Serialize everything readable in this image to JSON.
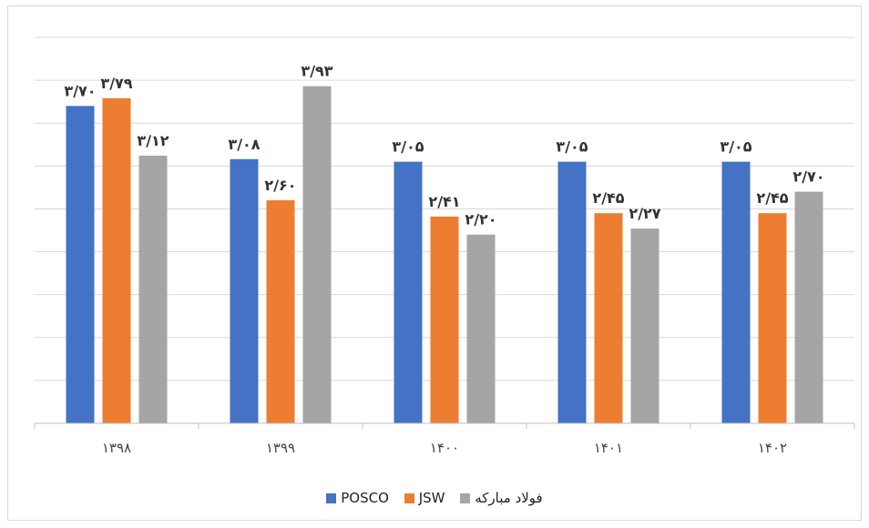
{
  "chart_data": {
    "type": "bar",
    "title": "",
    "xlabel": "",
    "ylabel": "",
    "ylim": [
      0,
      4.5
    ],
    "grid": true,
    "legend_position": "bottom",
    "categories": [
      "۱۳۹۸",
      "۱۳۹۹",
      "۱۴۰۰",
      "۱۴۰۱",
      "۱۴۰۲"
    ],
    "series": [
      {
        "name": "POSCO",
        "color": "#4472c4",
        "values": [
          3.7,
          3.08,
          3.05,
          3.05,
          3.05
        ],
        "labels": [
          "۳/۷۰",
          "۳/۰۸",
          "۳/۰۵",
          "۳/۰۵",
          "۳/۰۵"
        ]
      },
      {
        "name": "JSW",
        "color": "#ed7d31",
        "values": [
          3.79,
          2.6,
          2.41,
          2.45,
          2.45
        ],
        "labels": [
          "۳/۷۹",
          "۲/۶۰",
          "۲/۴۱",
          "۲/۴۵",
          "۲/۴۵"
        ]
      },
      {
        "name": "فولاد مبارکه",
        "color": "#a5a5a5",
        "values": [
          3.12,
          3.93,
          2.2,
          2.27,
          2.7
        ],
        "labels": [
          "۳/۱۲",
          "۳/۹۳",
          "۲/۲۰",
          "۲/۲۷",
          "۲/۷۰"
        ]
      }
    ]
  }
}
